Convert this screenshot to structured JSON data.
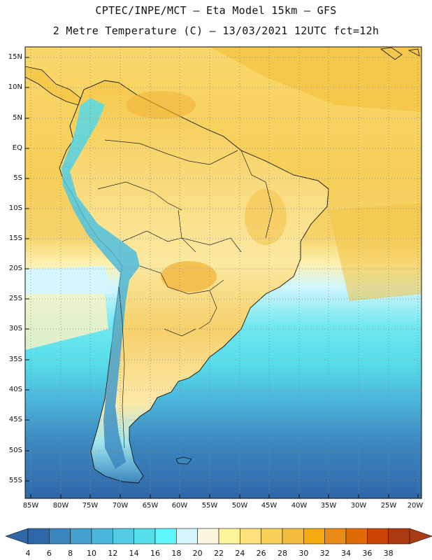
{
  "header": {
    "line1": "CPTEC/INPE/MCT –  Eta Model 15km – GFS",
    "line2": "2 Metre Temperature (C) – 13/03/2021 12UTC fct=12h"
  },
  "map": {
    "lat_labels": [
      "15N",
      "10N",
      "5N",
      "EQ",
      "5S",
      "10S",
      "15S",
      "20S",
      "25S",
      "30S",
      "35S",
      "40S",
      "45S",
      "50S",
      "55S"
    ],
    "lon_labels": [
      "85W",
      "80W",
      "75W",
      "70W",
      "65W",
      "60W",
      "55W",
      "50W",
      "45W",
      "40W",
      "35W",
      "30W",
      "25W",
      "20W"
    ],
    "grid": "dotted"
  },
  "colorbar": {
    "labels": [
      "4",
      "6",
      "8",
      "10",
      "12",
      "14",
      "16",
      "18",
      "20",
      "22",
      "24",
      "26",
      "28",
      "30",
      "32",
      "34",
      "36",
      "38"
    ],
    "colors": [
      "#2e68a8",
      "#3b86bf",
      "#44a0cf",
      "#4bb7dc",
      "#53cbe3",
      "#56ddea",
      "#5ef6fb",
      "#d2f6fb",
      "#fdf6df",
      "#fdf59a",
      "#fde27b",
      "#f8d15b",
      "#f2bd3c",
      "#f4ab10",
      "#ea8c18",
      "#e06c08",
      "#c94404",
      "#ab3a12"
    ]
  }
}
